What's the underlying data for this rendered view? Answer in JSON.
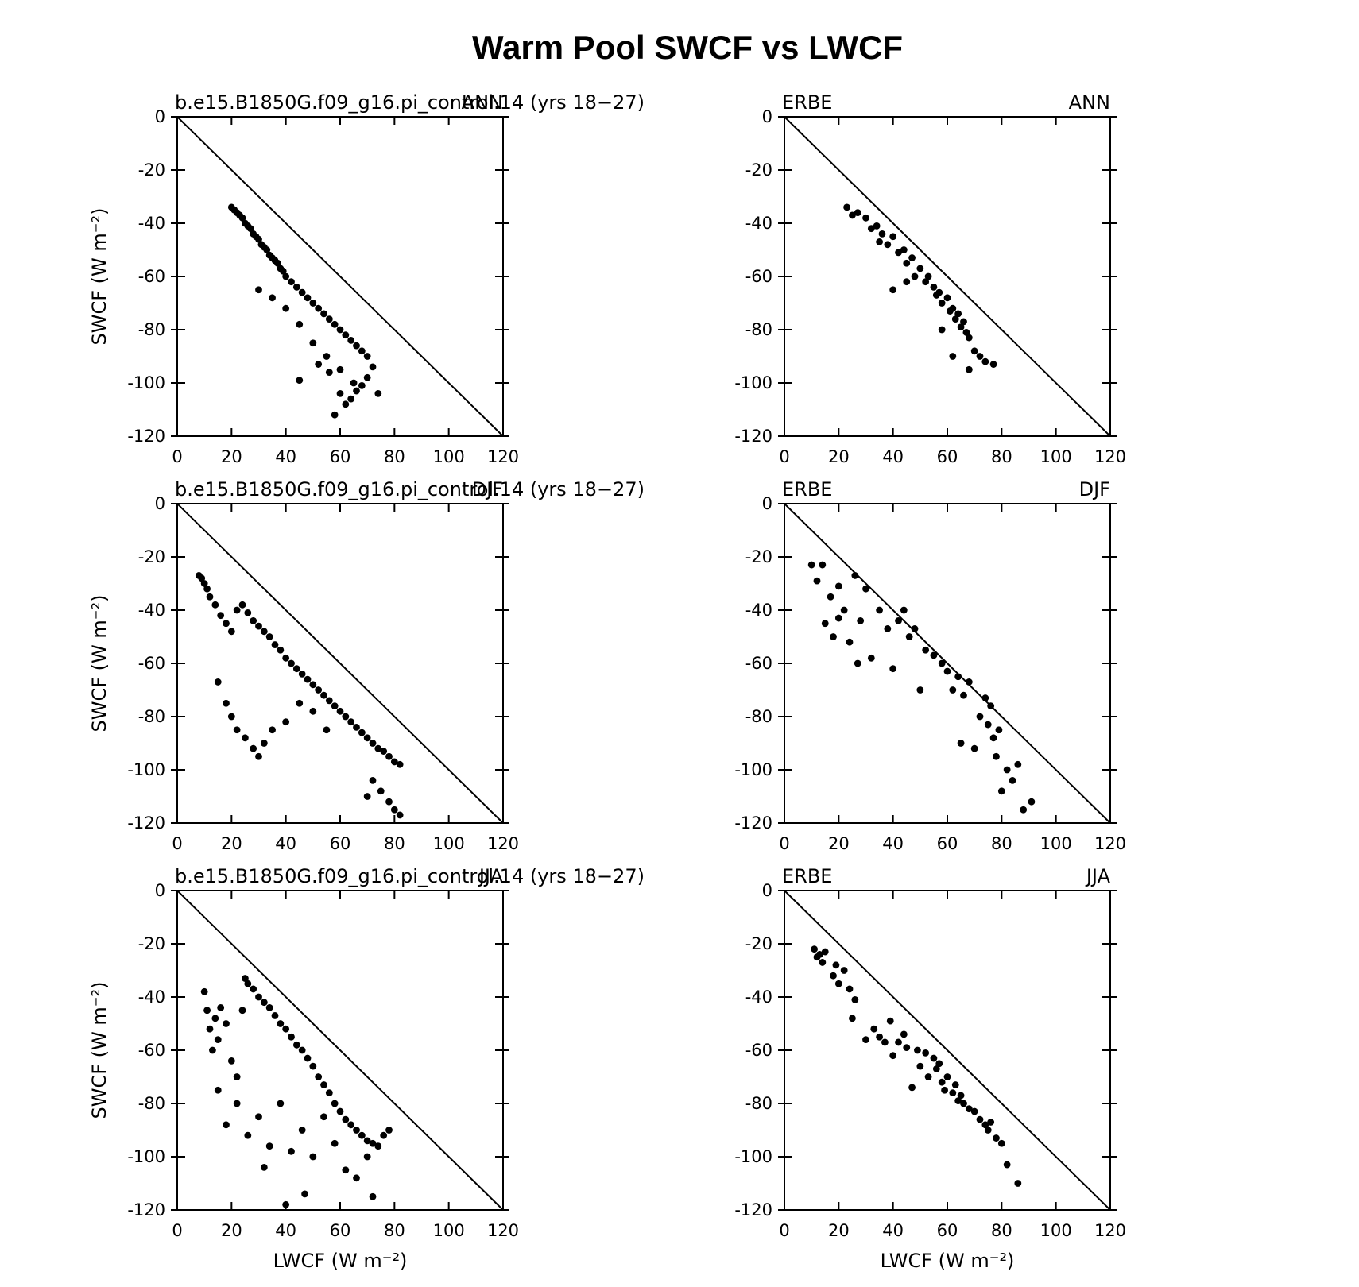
{
  "title": "Warm Pool SWCF vs LWCF",
  "chart_data": [
    {
      "type": "scatter",
      "title": "b.e15.B1850G.f09_g16.pi_control.14 (yrs 18−27)",
      "season": "ANN",
      "ylabel": "SWCF (W m⁻²)",
      "xlim": [
        0,
        120
      ],
      "ylim": [
        -120,
        0
      ],
      "xticks": [
        0,
        20,
        40,
        60,
        80,
        100,
        120
      ],
      "yticks": [
        0,
        -20,
        -40,
        -60,
        -80,
        -100,
        -120
      ],
      "color": "#000000",
      "reference_line": {
        "x": [
          0,
          120
        ],
        "y": [
          0,
          -120
        ]
      },
      "x": [
        20,
        21,
        22,
        23,
        24,
        25,
        26,
        27,
        28,
        29,
        30,
        31,
        32,
        33,
        34,
        35,
        36,
        37,
        38,
        39,
        40,
        42,
        44,
        46,
        48,
        50,
        52,
        54,
        56,
        58,
        60,
        62,
        64,
        66,
        68,
        70,
        72,
        74,
        30,
        35,
        40,
        45,
        50,
        55,
        60,
        65,
        70,
        58,
        62,
        66,
        45,
        52,
        56,
        60,
        64,
        68
      ],
      "y": [
        -34,
        -35,
        -36,
        -37,
        -38,
        -40,
        -41,
        -42,
        -44,
        -45,
        -46,
        -48,
        -49,
        -50,
        -52,
        -53,
        -54,
        -55,
        -57,
        -58,
        -60,
        -62,
        -64,
        -66,
        -68,
        -70,
        -72,
        -74,
        -76,
        -78,
        -80,
        -82,
        -84,
        -86,
        -88,
        -90,
        -94,
        -104,
        -65,
        -68,
        -72,
        -78,
        -85,
        -90,
        -95,
        -100,
        -98,
        -112,
        -108,
        -103,
        -99,
        -93,
        -96,
        -104,
        -106,
        -101
      ]
    },
    {
      "type": "scatter",
      "title": "ERBE",
      "season": "ANN",
      "xlim": [
        0,
        120
      ],
      "ylim": [
        -120,
        0
      ],
      "xticks": [
        0,
        20,
        40,
        60,
        80,
        100,
        120
      ],
      "yticks": [
        0,
        -20,
        -40,
        -60,
        -80,
        -100,
        -120
      ],
      "color": "#000000",
      "reference_line": {
        "x": [
          0,
          120
        ],
        "y": [
          0,
          -120
        ]
      },
      "x": [
        23,
        25,
        27,
        30,
        32,
        34,
        35,
        36,
        38,
        40,
        42,
        44,
        45,
        47,
        48,
        50,
        52,
        53,
        55,
        56,
        57,
        58,
        60,
        61,
        62,
        63,
        64,
        65,
        66,
        67,
        68,
        70,
        72,
        74,
        77,
        40,
        45,
        58,
        62,
        68
      ],
      "y": [
        -34,
        -37,
        -36,
        -38,
        -42,
        -41,
        -47,
        -44,
        -48,
        -45,
        -51,
        -50,
        -55,
        -53,
        -60,
        -57,
        -62,
        -60,
        -64,
        -67,
        -66,
        -70,
        -68,
        -73,
        -72,
        -76,
        -74,
        -79,
        -77,
        -81,
        -83,
        -88,
        -90,
        -92,
        -93,
        -65,
        -62,
        -80,
        -90,
        -95
      ]
    },
    {
      "type": "scatter",
      "title": "b.e15.B1850G.f09_g16.pi_control.14 (yrs 18−27)",
      "season": "DJF",
      "ylabel": "SWCF (W m⁻²)",
      "xlim": [
        0,
        120
      ],
      "ylim": [
        -120,
        0
      ],
      "xticks": [
        0,
        20,
        40,
        60,
        80,
        100,
        120
      ],
      "yticks": [
        0,
        -20,
        -40,
        -60,
        -80,
        -100,
        -120
      ],
      "color": "#000000",
      "reference_line": {
        "x": [
          0,
          120
        ],
        "y": [
          0,
          -120
        ]
      },
      "x": [
        8,
        9,
        10,
        11,
        12,
        14,
        16,
        18,
        20,
        22,
        24,
        26,
        28,
        30,
        32,
        34,
        36,
        38,
        40,
        42,
        44,
        46,
        48,
        50,
        52,
        54,
        56,
        58,
        60,
        62,
        64,
        66,
        68,
        70,
        72,
        74,
        76,
        78,
        80,
        82,
        15,
        18,
        20,
        22,
        25,
        28,
        30,
        32,
        35,
        40,
        45,
        50,
        55,
        75,
        78,
        80,
        82,
        70,
        72
      ],
      "y": [
        -27,
        -28,
        -30,
        -32,
        -35,
        -38,
        -42,
        -45,
        -48,
        -40,
        -38,
        -41,
        -44,
        -46,
        -48,
        -50,
        -53,
        -55,
        -58,
        -60,
        -62,
        -64,
        -66,
        -68,
        -70,
        -72,
        -74,
        -76,
        -78,
        -80,
        -82,
        -84,
        -86,
        -88,
        -90,
        -92,
        -93,
        -95,
        -97,
        -98,
        -67,
        -75,
        -80,
        -85,
        -88,
        -92,
        -95,
        -90,
        -85,
        -82,
        -75,
        -78,
        -85,
        -108,
        -112,
        -115,
        -117,
        -110,
        -104
      ]
    },
    {
      "type": "scatter",
      "title": "ERBE",
      "season": "DJF",
      "xlim": [
        0,
        120
      ],
      "ylim": [
        -120,
        0
      ],
      "xticks": [
        0,
        20,
        40,
        60,
        80,
        100,
        120
      ],
      "yticks": [
        0,
        -20,
        -40,
        -60,
        -80,
        -100,
        -120
      ],
      "color": "#000000",
      "reference_line": {
        "x": [
          0,
          120
        ],
        "y": [
          0,
          -120
        ]
      },
      "x": [
        10,
        12,
        14,
        15,
        17,
        18,
        20,
        20,
        22,
        24,
        26,
        27,
        28,
        30,
        32,
        35,
        38,
        40,
        42,
        44,
        46,
        48,
        50,
        52,
        55,
        58,
        60,
        62,
        64,
        65,
        66,
        68,
        70,
        72,
        74,
        75,
        76,
        77,
        78,
        79,
        80,
        82,
        84,
        86,
        88,
        91
      ],
      "y": [
        -23,
        -29,
        -23,
        -45,
        -35,
        -50,
        -31,
        -43,
        -40,
        -52,
        -27,
        -60,
        -44,
        -32,
        -58,
        -40,
        -47,
        -62,
        -44,
        -40,
        -50,
        -47,
        -70,
        -55,
        -57,
        -60,
        -63,
        -70,
        -65,
        -90,
        -72,
        -67,
        -92,
        -80,
        -73,
        -83,
        -76,
        -88,
        -95,
        -85,
        -108,
        -100,
        -104,
        -98,
        -115,
        -112
      ]
    },
    {
      "type": "scatter",
      "title": "b.e15.B1850G.f09_g16.pi_control.14 (yrs 18−27)",
      "season": "JJA",
      "ylabel": "SWCF (W m⁻²)",
      "xlabel": "LWCF (W m⁻²)",
      "xlim": [
        0,
        120
      ],
      "ylim": [
        -120,
        0
      ],
      "xticks": [
        0,
        20,
        40,
        60,
        80,
        100,
        120
      ],
      "yticks": [
        0,
        -20,
        -40,
        -60,
        -80,
        -100,
        -120
      ],
      "color": "#000000",
      "reference_line": {
        "x": [
          0,
          120
        ],
        "y": [
          0,
          -120
        ]
      },
      "x": [
        10,
        11,
        12,
        13,
        14,
        15,
        16,
        18,
        20,
        22,
        24,
        25,
        26,
        28,
        30,
        32,
        34,
        36,
        38,
        40,
        42,
        44,
        46,
        48,
        50,
        52,
        54,
        56,
        58,
        60,
        62,
        64,
        66,
        68,
        70,
        72,
        74,
        76,
        78,
        15,
        18,
        22,
        26,
        30,
        34,
        38,
        42,
        46,
        50,
        54,
        58,
        62,
        66,
        70,
        40,
        47,
        32,
        72
      ],
      "y": [
        -38,
        -45,
        -52,
        -60,
        -48,
        -56,
        -44,
        -50,
        -64,
        -70,
        -45,
        -33,
        -35,
        -37,
        -40,
        -42,
        -44,
        -47,
        -50,
        -52,
        -55,
        -58,
        -60,
        -63,
        -66,
        -70,
        -73,
        -76,
        -80,
        -83,
        -86,
        -88,
        -90,
        -92,
        -94,
        -95,
        -96,
        -92,
        -90,
        -75,
        -88,
        -80,
        -92,
        -85,
        -96,
        -80,
        -98,
        -90,
        -100,
        -85,
        -95,
        -105,
        -108,
        -100,
        -118,
        -114,
        -104,
        -115
      ]
    },
    {
      "type": "scatter",
      "title": "ERBE",
      "season": "JJA",
      "xlabel": "LWCF (W m⁻²)",
      "xlim": [
        0,
        120
      ],
      "ylim": [
        -120,
        0
      ],
      "xticks": [
        0,
        20,
        40,
        60,
        80,
        100,
        120
      ],
      "yticks": [
        0,
        -20,
        -40,
        -60,
        -80,
        -100,
        -120
      ],
      "color": "#000000",
      "reference_line": {
        "x": [
          0,
          120
        ],
        "y": [
          0,
          -120
        ]
      },
      "x": [
        11,
        12,
        13,
        14,
        15,
        18,
        19,
        20,
        22,
        24,
        25,
        26,
        30,
        33,
        35,
        37,
        39,
        40,
        42,
        44,
        45,
        47,
        49,
        50,
        52,
        53,
        55,
        56,
        57,
        58,
        59,
        60,
        62,
        63,
        64,
        65,
        66,
        68,
        70,
        72,
        74,
        75,
        76,
        78,
        80,
        82,
        86
      ],
      "y": [
        -22,
        -25,
        -24,
        -27,
        -23,
        -32,
        -28,
        -35,
        -30,
        -37,
        -48,
        -41,
        -56,
        -52,
        -55,
        -57,
        -49,
        -62,
        -57,
        -54,
        -59,
        -74,
        -60,
        -66,
        -61,
        -70,
        -63,
        -67,
        -65,
        -72,
        -75,
        -70,
        -76,
        -73,
        -79,
        -77,
        -80,
        -82,
        -83,
        -86,
        -88,
        -90,
        -87,
        -93,
        -95,
        -103,
        -110
      ]
    }
  ]
}
